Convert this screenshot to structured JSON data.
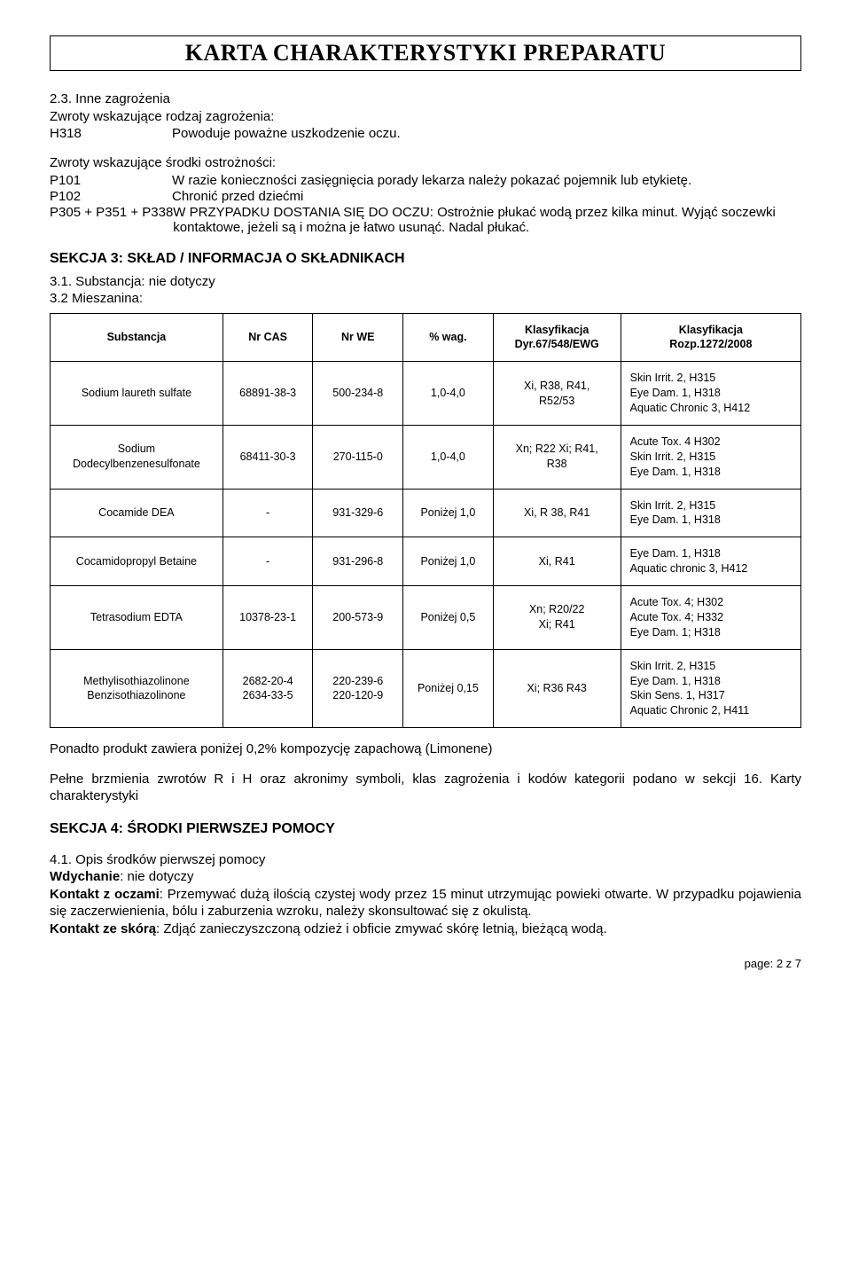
{
  "title": "KARTA CHARAKTERYSTYKI PREPARATU",
  "section2_3": {
    "heading": "2.3. Inne zagrożenia",
    "hazard_intro": "Zwroty wskazujące rodzaj zagrożenia:",
    "hazard_rows": [
      {
        "code": "H318",
        "text": "Powoduje poważne uszkodzenie oczu."
      }
    ],
    "precaution_intro": "Zwroty wskazujące środki ostrożności:",
    "precaution_rows": [
      {
        "code": "P101",
        "text": "W razie konieczności zasięgnięcia porady lekarza należy pokazać pojemnik lub etykietę."
      },
      {
        "code": "P102",
        "text": "Chronić przed dziećmi"
      },
      {
        "code": "P305 + P351 + P338",
        "text": "W PRZYPADKU DOSTANIA SIĘ DO OCZU: Ostrożnie płukać wodą przez kilka minut. Wyjąć soczewki kontaktowe, jeżeli są i można je łatwo usunąć. Nadal płukać."
      }
    ]
  },
  "section3": {
    "heading": "SEKCJA 3: SKŁAD / INFORMACJA O SKŁADNIKACH",
    "line1": "3.1. Substancja: nie dotyczy",
    "line2": "3.2 Mieszanina:",
    "table": {
      "headers": [
        "Substancja",
        "Nr CAS",
        "Nr WE",
        "% wag.",
        "Klasyfikacja\nDyr.67/548/EWG",
        "Klasyfikacja\nRozp.1272/2008"
      ],
      "rows": [
        {
          "name": "Sodium laureth sulfate",
          "cas": "68891-38-3",
          "we": "500-234-8",
          "wag": "1,0-4,0",
          "cls1": "Xi, R38, R41,\nR52/53",
          "cls2": "Skin Irrit. 2, H315\nEye Dam. 1, H318\nAquatic Chronic 3, H412"
        },
        {
          "name": "Sodium\nDodecylbenzenesulfonate",
          "cas": "68411-30-3",
          "we": "270-115-0",
          "wag": "1,0-4,0",
          "cls1": "Xn; R22 Xi; R41,\nR38",
          "cls2": "Acute Tox. 4 H302\nSkin Irrit. 2, H315\nEye Dam. 1, H318"
        },
        {
          "name": "Cocamide DEA",
          "cas": "-",
          "we": "931-329-6",
          "wag": "Poniżej 1,0",
          "cls1": "Xi, R 38, R41",
          "cls2": "Skin Irrit. 2, H315\nEye Dam. 1, H318"
        },
        {
          "name": "Cocamidopropyl Betaine",
          "cas": "-",
          "we": "931-296-8",
          "wag": "Poniżej 1,0",
          "cls1": "Xi, R41",
          "cls2": "Eye Dam. 1, H318\nAquatic chronic 3, H412"
        },
        {
          "name": "Tetrasodium EDTA",
          "cas": "10378-23-1",
          "we": "200-573-9",
          "wag": "Poniżej 0,5",
          "cls1": "Xn; R20/22\nXi; R41",
          "cls2": "Acute Tox. 4; H302\nAcute Tox. 4; H332\nEye Dam. 1; H318"
        },
        {
          "name": "Methylisothiazolinone\nBenzisothiazolinone",
          "cas": "2682-20-4\n2634-33-5",
          "we": "220-239-6\n220-120-9",
          "wag": "Poniżej 0,15",
          "cls1": "Xi; R36 R43",
          "cls2": "Skin Irrit. 2, H315\nEye Dam. 1, H318\nSkin Sens. 1, H317\nAquatic Chronic 2, H411"
        }
      ]
    },
    "after1": "Ponadto produkt zawiera poniżej 0,2% kompozycję zapachową (Limonene)",
    "after2": "Pełne brzmienia zwrotów R i H oraz akronimy symboli, klas zagrożenia i kodów kategorii podano w sekcji 16. Karty charakterystyki"
  },
  "section4": {
    "heading": "SEKCJA 4: ŚRODKI PIERWSZEJ POMOCY",
    "sub": "4.1. Opis środków pierwszej pomocy",
    "p1_label": "Wdychanie",
    "p1_text": ": nie dotyczy",
    "p2_label": "Kontakt z oczami",
    "p2_text": ": Przemywać dużą ilością czystej wody przez 15 minut utrzymując powieki otwarte. W przypadku pojawienia się zaczerwienienia, bólu i zaburzenia wzroku, należy skonsultować się z okulistą.",
    "p3_label": "Kontakt ze skórą",
    "p3_text": ": Zdjąć zanieczyszczoną odzież i obficie zmywać skórę letnią, bieżącą wodą."
  },
  "footer": "page: 2 z 7"
}
